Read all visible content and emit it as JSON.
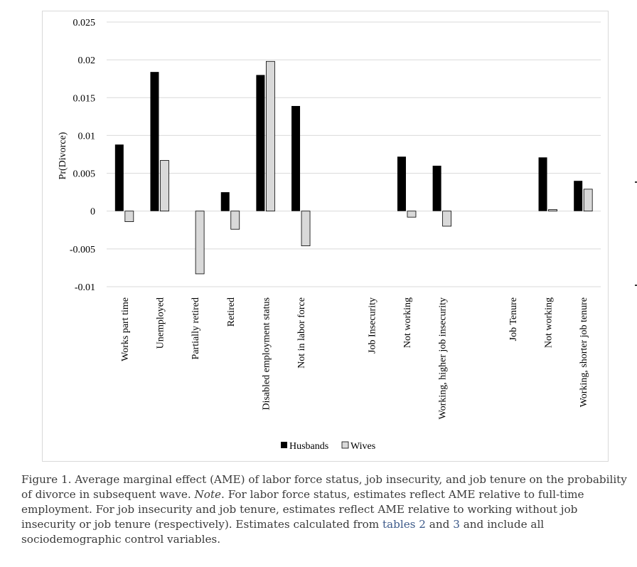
{
  "chart_data": {
    "type": "bar",
    "ylabel": "Pr(Divorce)",
    "ylim": [
      -0.01,
      0.025
    ],
    "yticks": [
      {
        "value": 0.025,
        "label": "0.025"
      },
      {
        "value": 0.02,
        "label": "0.02"
      },
      {
        "value": 0.015,
        "label": "0.015"
      },
      {
        "value": 0.01,
        "label": "0.01"
      },
      {
        "value": 0.005,
        "label": "0.005"
      },
      {
        "value": 0,
        "label": "0"
      },
      {
        "value": -0.005,
        "label": "-0.005"
      },
      {
        "value": -0.01,
        "label": "-0.01"
      }
    ],
    "grid": true,
    "legend_position": "bottom",
    "categories": [
      "Works part time",
      "Unemployed",
      "Partially retired",
      "Retired",
      "Disabled employment status",
      "Not in labor force",
      "",
      "Job Insecurity",
      "Not working",
      "Working, higher job insecurity",
      "",
      "Job Tenure",
      "Not working",
      "Working, shorter job tenure"
    ],
    "series": [
      {
        "name": "Husbands",
        "color": "#000000",
        "values": [
          0.0088,
          0.0184,
          0,
          0.0025,
          0.018,
          0.0139,
          null,
          null,
          0.0072,
          0.006,
          null,
          null,
          0.0071,
          0.004
        ]
      },
      {
        "name": "Wives",
        "color": "#d9d9d9",
        "values": [
          -0.0014,
          0.0067,
          -0.0083,
          -0.0024,
          0.0198,
          -0.0046,
          null,
          null,
          -0.0008,
          -0.002,
          null,
          null,
          0.0002,
          0.0029
        ]
      }
    ]
  },
  "caption": {
    "part1": "Figure 1. Average marginal effect (AME) of labor force status, job insecurity, and job tenure on the probability of divorce in subsequent wave.",
    "note_word": "Note",
    "part2": ". For labor force status, estimates reflect AME relative to full-time employment. For job insecurity and job tenure, estimates reflect AME relative to working without job insecurity or job tenure (respectively). Estimates calculated from",
    "link1": "tables 2",
    "part3": "and",
    "link2": "3",
    "part4": "and include all sociodemographic control variables.",
    "link_color": "#3d5a8a"
  }
}
